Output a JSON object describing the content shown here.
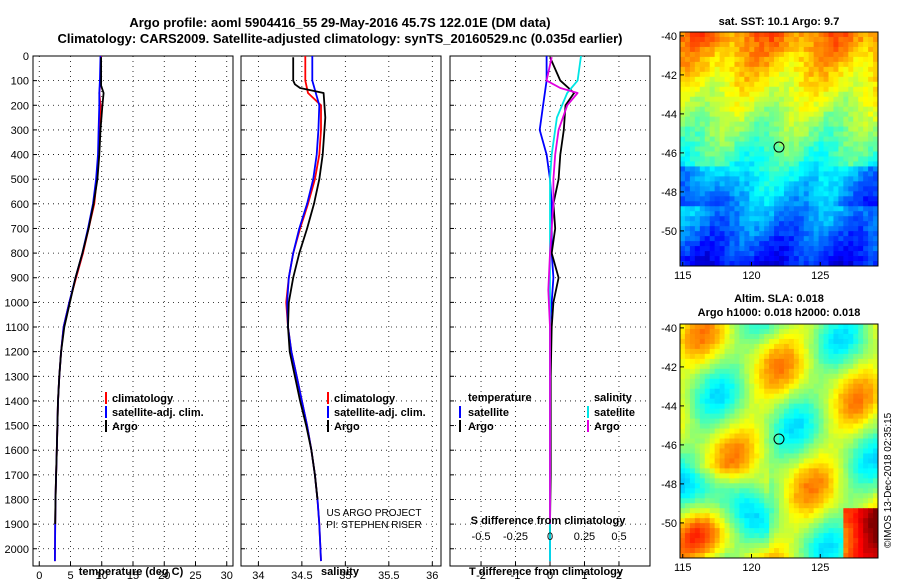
{
  "title_line1": "Argo profile: aoml 5904416_55 29-May-2016 45.7S 122.01E (DM data)",
  "title_line2": "Climatology: CARS2009. Satellite-adjusted climatology: synTS_20160529.nc (0.035d earlier)",
  "credit_line1": "US ARGO PROJECT",
  "credit_line2": "PI: STEPHEN RISER",
  "stamp": "©IMOS 13-Dec-2018 02:35:15",
  "legend_left": [
    "climatology",
    "satellite-adj. clim.",
    "Argo"
  ],
  "legend_diff": {
    "temperature_header": "temperature",
    "salinity_header": "salinity",
    "temperature_items": [
      "satellite",
      "Argo"
    ],
    "salinity_items": [
      "satellite",
      "Argo"
    ]
  },
  "colors": {
    "climatology": "#ff0000",
    "satellite": "#0000ff",
    "argo": "#000000",
    "sal_satellite": "#00e5e5",
    "sal_argo": "#e000e0"
  },
  "chart_data": [
    {
      "type": "line",
      "name": "temperature",
      "xlabel": "temperature (deg C)",
      "xlim": [
        -1,
        31
      ],
      "xticks": [
        0,
        5,
        10,
        15,
        20,
        25,
        30
      ],
      "ylim": [
        2070,
        0
      ],
      "yticks": [
        0,
        100,
        200,
        300,
        400,
        500,
        600,
        700,
        800,
        900,
        1000,
        1100,
        1200,
        1300,
        1400,
        1500,
        1600,
        1700,
        1800,
        1900,
        2000
      ],
      "series": [
        {
          "name": "climatology",
          "color": "#ff0000",
          "x": [
            9.9,
            9.8,
            9.6,
            9.8,
            9.6,
            9.5,
            9.2,
            8.8,
            7.9,
            7.0,
            5.9,
            4.8,
            3.9,
            3.5,
            3.2,
            3.0,
            2.9,
            2.8,
            2.7,
            2.6,
            2.55,
            2.5
          ],
          "y": [
            0,
            100,
            150,
            200,
            300,
            400,
            500,
            600,
            700,
            800,
            900,
            1000,
            1100,
            1200,
            1300,
            1400,
            1500,
            1600,
            1700,
            1800,
            1900,
            2050
          ]
        },
        {
          "name": "satellite-adj. clim.",
          "color": "#0000ff",
          "x": [
            9.8,
            9.7,
            9.6,
            9.6,
            9.5,
            9.4,
            9.1,
            8.6,
            7.8,
            6.9,
            5.8,
            4.8,
            3.9,
            3.5,
            3.2,
            3.0,
            2.9,
            2.8,
            2.7,
            2.6,
            2.55,
            2.5
          ],
          "y": [
            0,
            100,
            150,
            200,
            300,
            400,
            500,
            600,
            700,
            800,
            900,
            1000,
            1100,
            1200,
            1300,
            1400,
            1500,
            1600,
            1700,
            1800,
            1900,
            2050
          ]
        },
        {
          "name": "Argo",
          "color": "#000000",
          "x": [
            9.9,
            9.9,
            10.3,
            10.1,
            9.8,
            9.6,
            9.3,
            8.7,
            7.9,
            6.9,
            5.8,
            4.9,
            4.0,
            3.5,
            3.2,
            3.0,
            2.9,
            2.8,
            2.7,
            2.6,
            2.55
          ],
          "y": [
            5,
            120,
            150,
            200,
            300,
            400,
            500,
            600,
            700,
            800,
            900,
            1000,
            1100,
            1200,
            1300,
            1400,
            1500,
            1600,
            1700,
            1800,
            1900
          ]
        }
      ]
    },
    {
      "type": "line",
      "name": "salinity",
      "xlabel": "salinity",
      "xlim": [
        33.8,
        36.1
      ],
      "xticks": [
        34,
        34.5,
        35,
        35.5,
        36
      ],
      "ylim": [
        2070,
        0
      ],
      "series": [
        {
          "name": "climatology",
          "color": "#ff0000",
          "x": [
            34.54,
            34.54,
            34.57,
            34.72,
            34.72,
            34.7,
            34.65,
            34.57,
            34.48,
            34.4,
            34.35,
            34.32,
            34.34,
            34.38,
            34.44,
            34.5,
            34.56,
            34.61,
            34.65,
            34.68,
            34.7,
            34.72
          ],
          "y": [
            0,
            100,
            150,
            200,
            300,
            400,
            500,
            600,
            700,
            800,
            900,
            1000,
            1100,
            1200,
            1300,
            1400,
            1500,
            1600,
            1700,
            1800,
            1900,
            2050
          ]
        },
        {
          "name": "satellite-adj. clim.",
          "color": "#0000ff",
          "x": [
            34.62,
            34.62,
            34.66,
            34.7,
            34.69,
            34.67,
            34.63,
            34.56,
            34.47,
            34.4,
            34.35,
            34.33,
            34.34,
            34.38,
            34.44,
            34.5,
            34.56,
            34.61,
            34.65,
            34.68,
            34.7,
            34.72
          ],
          "y": [
            0,
            100,
            150,
            200,
            300,
            400,
            500,
            600,
            700,
            800,
            900,
            1000,
            1100,
            1200,
            1300,
            1400,
            1500,
            1600,
            1700,
            1800,
            1900,
            2050
          ]
        },
        {
          "name": "Argo",
          "color": "#000000",
          "x": [
            34.4,
            34.4,
            34.42,
            34.48,
            34.75,
            34.77,
            34.74,
            34.7,
            34.64,
            34.56,
            34.47,
            34.4,
            34.35,
            34.34,
            34.36,
            34.42,
            34.48,
            34.55,
            34.61,
            34.65,
            34.68
          ],
          "y": [
            5,
            100,
            115,
            130,
            150,
            250,
            400,
            500,
            600,
            700,
            800,
            900,
            1000,
            1100,
            1200,
            1300,
            1400,
            1500,
            1600,
            1700,
            1800
          ]
        }
      ]
    },
    {
      "type": "line",
      "name": "difference",
      "xlabel": "T difference from climatology",
      "xlabel_top": "S difference from climatology",
      "xlim": [
        -2.9,
        2.9
      ],
      "xticks": [
        -2,
        -1,
        0,
        1,
        2
      ],
      "top_ticks": [
        "-0.5",
        "-0.25",
        "0",
        "0.25",
        "0.5"
      ],
      "top_ticks_at": [
        -2,
        -1,
        0,
        1,
        2
      ],
      "ylim": [
        2070,
        0
      ],
      "series": [
        {
          "name": "temperature satellite",
          "color": "#0000ff",
          "x": [
            -0.1,
            -0.1,
            -0.2,
            -0.3,
            -0.1,
            0.0,
            0.05,
            0.05,
            0.05,
            0.1,
            0.05,
            0.0,
            0.0,
            0.0,
            0.0,
            0.0,
            0.0
          ],
          "y": [
            0,
            100,
            200,
            300,
            400,
            500,
            600,
            700,
            800,
            900,
            1000,
            1100,
            1300,
            1500,
            1700,
            1900,
            2050
          ]
        },
        {
          "name": "temperature Argo",
          "color": "#000000",
          "x": [
            0.0,
            0.3,
            0.7,
            0.45,
            0.4,
            0.3,
            0.25,
            0.1,
            0.15,
            0.05,
            0.25,
            0.1,
            0.05,
            0.02,
            0.02,
            0.02,
            0.0,
            0.0
          ],
          "y": [
            5,
            100,
            150,
            200,
            300,
            400,
            500,
            600,
            700,
            800,
            900,
            1000,
            1100,
            1300,
            1500,
            1700,
            1900,
            1950
          ]
        },
        {
          "name": "salinity satellite",
          "color": "#00e5e5",
          "x": [
            0.9,
            0.8,
            0.5,
            0.2,
            0.05,
            0.0,
            0.0,
            0.0,
            0.0,
            0.0,
            0.0,
            0.0,
            0.0,
            0.0,
            0.0
          ],
          "y": [
            0,
            100,
            150,
            250,
            400,
            500,
            700,
            900,
            1100,
            1300,
            1500,
            1700,
            1900,
            2000,
            2050
          ]
        },
        {
          "name": "salinity Argo",
          "color": "#e000e0",
          "x": [
            0.05,
            -0.1,
            0.3,
            0.8,
            0.5,
            0.25,
            0.15,
            0.1,
            0.1,
            0.05,
            0.0,
            -0.05,
            0.0,
            0.0,
            0.0,
            0.0,
            0.0
          ],
          "y": [
            5,
            100,
            130,
            150,
            200,
            300,
            400,
            500,
            600,
            700,
            800,
            950,
            1100,
            1300,
            1500,
            1700,
            1900
          ]
        }
      ]
    },
    {
      "type": "heatmap",
      "name": "sst_map",
      "title": "sat. SST: 10.1  Argo: 9.7",
      "xticks": [
        115,
        120,
        125
      ],
      "yticks": [
        -40,
        -42,
        -44,
        -46,
        -48,
        -50
      ],
      "xlim": [
        114.8,
        129.2
      ],
      "ylim": [
        -51.8,
        -39.8
      ],
      "marker": [
        122.0,
        -45.7
      ]
    },
    {
      "type": "heatmap",
      "name": "sla_map",
      "title_line1": "Altim. SLA: 0.018",
      "title_line2": "Argo h1000: 0.018  h2000: 0.018",
      "xticks": [
        115,
        120,
        125
      ],
      "yticks": [
        -40,
        -42,
        -44,
        -46,
        -48,
        -50
      ],
      "xlim": [
        114.8,
        129.2
      ],
      "ylim": [
        -51.8,
        -39.8
      ],
      "marker": [
        122.0,
        -45.7
      ]
    }
  ]
}
